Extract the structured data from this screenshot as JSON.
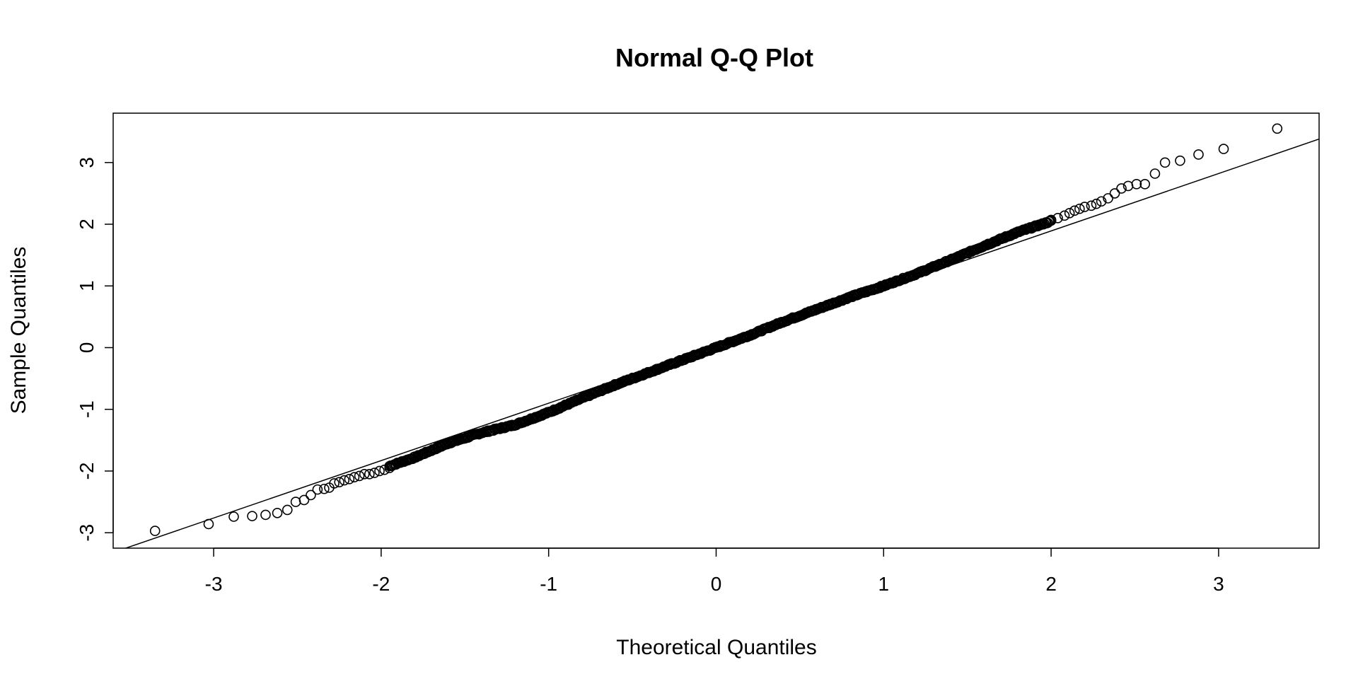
{
  "chart_data": {
    "type": "scatter",
    "title": "Normal Q-Q Plot",
    "xlabel": "Theoretical Quantiles",
    "ylabel": "Sample Quantiles",
    "xlim": [
      -3.6,
      3.6
    ],
    "ylim": [
      -3.25,
      3.8
    ],
    "x_ticks": [
      -3,
      -2,
      -1,
      0,
      1,
      2,
      3
    ],
    "x_tick_labels": [
      "-3",
      "-2",
      "-1",
      "0",
      "1",
      "2",
      "3"
    ],
    "y_ticks": [
      -3,
      -2,
      -1,
      0,
      1,
      2,
      3
    ],
    "y_tick_labels": [
      "-3",
      "-2",
      "-1",
      "0",
      "1",
      "2",
      "3"
    ],
    "grid": false,
    "legend": "none",
    "marker": "open-circle",
    "reference_line": {
      "x": [
        -3.6,
        3.6
      ],
      "y": [
        -3.32,
        3.38
      ]
    },
    "lower_tail": {
      "x": [
        -3.35,
        -3.03,
        -2.88,
        -2.77,
        -2.69,
        -2.62,
        -2.56,
        -2.51,
        -2.46,
        -2.42,
        -2.38,
        -2.34,
        -2.31,
        -2.28,
        -2.25,
        -2.22,
        -2.19,
        -2.16,
        -2.13,
        -2.1,
        -2.07,
        -2.04,
        -2.01,
        -1.98,
        -1.95
      ],
      "y": [
        -2.97,
        -2.86,
        -2.74,
        -2.73,
        -2.71,
        -2.68,
        -2.63,
        -2.5,
        -2.47,
        -2.39,
        -2.3,
        -2.29,
        -2.27,
        -2.2,
        -2.18,
        -2.15,
        -2.13,
        -2.1,
        -2.08,
        -2.05,
        -2.05,
        -2.03,
        -2.0,
        -1.98,
        -1.95
      ]
    },
    "body_curve": {
      "x": [
        -1.95,
        -1.8,
        -1.6,
        -1.4,
        -1.2,
        -1.0,
        -0.8,
        -0.6,
        -0.4,
        -0.2,
        0.0,
        0.2,
        0.4,
        0.6,
        0.8,
        1.0,
        1.2,
        1.4,
        1.6,
        1.8,
        2.0
      ],
      "y": [
        -1.92,
        -1.78,
        -1.55,
        -1.38,
        -1.25,
        -1.05,
        -0.82,
        -0.6,
        -0.4,
        -0.2,
        0.0,
        0.2,
        0.42,
        0.62,
        0.82,
        1.0,
        1.2,
        1.42,
        1.65,
        1.87,
        2.05
      ]
    },
    "body_point_count": 600,
    "upper_tail": {
      "x": [
        2.0,
        2.04,
        2.08,
        2.11,
        2.14,
        2.17,
        2.2,
        2.24,
        2.27,
        2.3,
        2.34,
        2.38,
        2.42,
        2.46,
        2.51,
        2.56,
        2.62,
        2.68,
        2.77,
        2.88,
        3.03,
        3.35
      ],
      "y": [
        2.07,
        2.1,
        2.14,
        2.18,
        2.22,
        2.25,
        2.28,
        2.3,
        2.33,
        2.37,
        2.42,
        2.5,
        2.58,
        2.62,
        2.65,
        2.65,
        2.82,
        3.0,
        3.03,
        3.13,
        3.22,
        3.55
      ]
    }
  }
}
